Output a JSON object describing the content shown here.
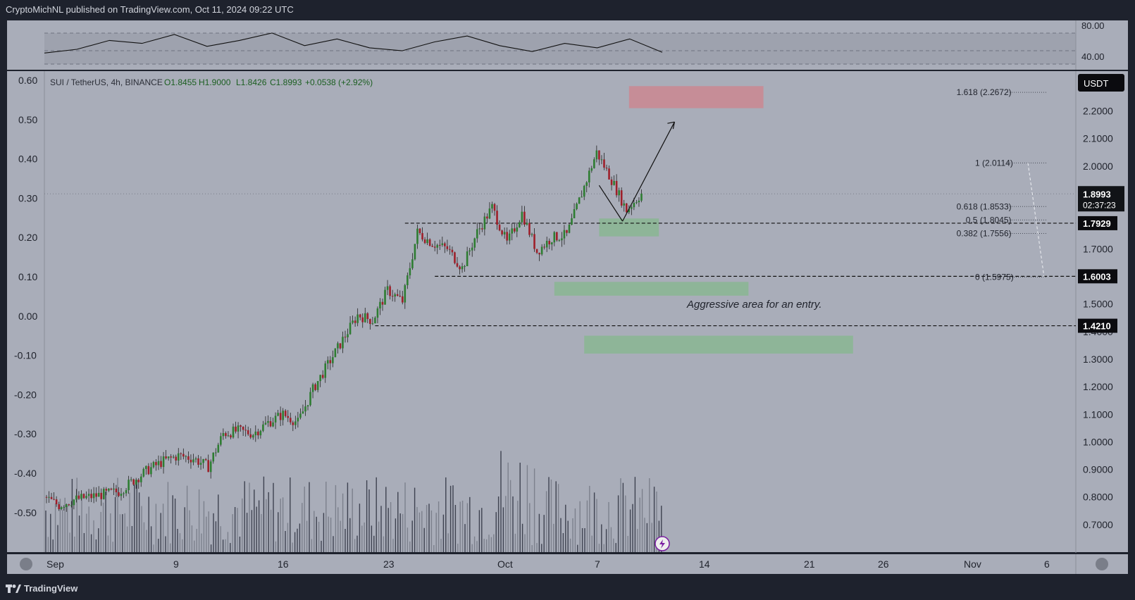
{
  "header": {
    "publisher": "CryptoMichNL published on TradingView.com, Oct 11, 2024 09:22 UTC"
  },
  "footer": {
    "brand": "TradingView",
    "logo_icon": "tradingview-logo-icon"
  },
  "legend": {
    "symbol": "SUI / TetherUS, 4h, BINANCE",
    "open": "O1.8455",
    "high": "H1.9000",
    "low": "L1.8426",
    "close": "C1.8993",
    "change": "+0.0538 (+2.92%)"
  },
  "currency_button": "USDT",
  "price_tags": {
    "last": "1.8993",
    "countdown": "02:37:23",
    "level1": "1.7929",
    "level2": "1.6003",
    "level3": "1.4210"
  },
  "annotation": "Aggressive area for an entry.",
  "fib": [
    "1.618 (2.2672)",
    "1 (2.0114)",
    "0.618 (1.8533)",
    "0.5 (1.8045)",
    "0.382 (1.7556)",
    "0 (1.5975)"
  ],
  "chart_data": {
    "type": "candlestick",
    "title": "",
    "price_axis": {
      "ticks": [
        "2.2000",
        "2.1000",
        "2.0000",
        "1.9000",
        "1.8000",
        "1.7000",
        "1.6000",
        "1.5000",
        "1.4000",
        "1.3000",
        "1.2000",
        "1.1000",
        "1.0000",
        "0.9000",
        "0.8000",
        "0.7000"
      ],
      "ylim": [
        0.65,
        2.4
      ]
    },
    "percent_axis": {
      "ticks": [
        "0.60",
        "0.50",
        "0.40",
        "0.30",
        "0.20",
        "0.10",
        "0.00",
        "-0.10",
        "-0.20",
        "-0.30",
        "-0.40",
        "-0.50"
      ]
    },
    "rsi_axis": {
      "ticks": [
        "80.00",
        "40.00"
      ]
    },
    "time_axis": {
      "ticks": [
        "Sep",
        "9",
        "16",
        "23",
        "Oct",
        "7",
        "14",
        "21",
        "26",
        "Nov",
        "6"
      ]
    },
    "levels": [
      1.7929,
      1.6003,
      1.421
    ],
    "zones": [
      {
        "kind": "target",
        "from": 2.21,
        "to": 2.29,
        "x_from": "Oct 10",
        "x_to": "Oct 19",
        "color": "#c98a94"
      },
      {
        "kind": "entry",
        "from": 1.745,
        "to": 1.81,
        "x_from": "Oct 8",
        "x_to": "Oct 12",
        "color": "#8bb695"
      },
      {
        "kind": "entry",
        "from": 1.53,
        "to": 1.58,
        "x_from": "Oct 5",
        "x_to": "Oct 18",
        "color": "#8bb695"
      },
      {
        "kind": "entry",
        "from": 1.32,
        "to": 1.385,
        "x_from": "Oct 7",
        "x_to": "Oct 25",
        "color": "#8bb695"
      }
    ],
    "close_path": [
      [
        "Sep 1",
        0.8
      ],
      [
        "Sep 2",
        0.77
      ],
      [
        "Sep 3",
        0.79
      ],
      [
        "Sep 4",
        0.8
      ],
      [
        "Sep 5",
        0.81
      ],
      [
        "Sep 6",
        0.82
      ],
      [
        "Sep 7",
        0.86
      ],
      [
        "Sep 8",
        0.9
      ],
      [
        "Sep 9",
        0.93
      ],
      [
        "Sep 10",
        0.95
      ],
      [
        "Sep 11",
        0.94
      ],
      [
        "Sep 12",
        0.91
      ],
      [
        "Sep 13",
        1.03
      ],
      [
        "Sep 14",
        1.04
      ],
      [
        "Sep 15",
        1.03
      ],
      [
        "Sep 16",
        1.07
      ],
      [
        "Sep 17",
        1.1
      ],
      [
        "Sep 18",
        1.07
      ],
      [
        "Sep 19",
        1.19
      ],
      [
        "Sep 20",
        1.28
      ],
      [
        "Sep 21",
        1.37
      ],
      [
        "Sep 22",
        1.46
      ],
      [
        "Sep 23",
        1.44
      ],
      [
        "Sep 24",
        1.55
      ],
      [
        "Sep 25",
        1.51
      ],
      [
        "Sep 26",
        1.76
      ],
      [
        "Sep 27",
        1.72
      ],
      [
        "Sep 28",
        1.7
      ],
      [
        "Sep 29",
        1.63
      ],
      [
        "Sep 30",
        1.76
      ],
      [
        "Oct 1",
        1.85
      ],
      [
        "Oct 2",
        1.72
      ],
      [
        "Oct 3",
        1.83
      ],
      [
        "Oct 4",
        1.69
      ],
      [
        "Oct 5",
        1.74
      ],
      [
        "Oct 6",
        1.75
      ],
      [
        "Oct 7",
        1.9
      ],
      [
        "Oct 8",
        2.05
      ],
      [
        "Oct 9",
        1.95
      ],
      [
        "Oct 10",
        1.84
      ],
      [
        "Oct 11",
        1.9
      ]
    ],
    "rsi": [
      45,
      50,
      62,
      58,
      70,
      54,
      62,
      72,
      55,
      64,
      52,
      48,
      60,
      68,
      55,
      47,
      58,
      52,
      64,
      46
    ]
  }
}
